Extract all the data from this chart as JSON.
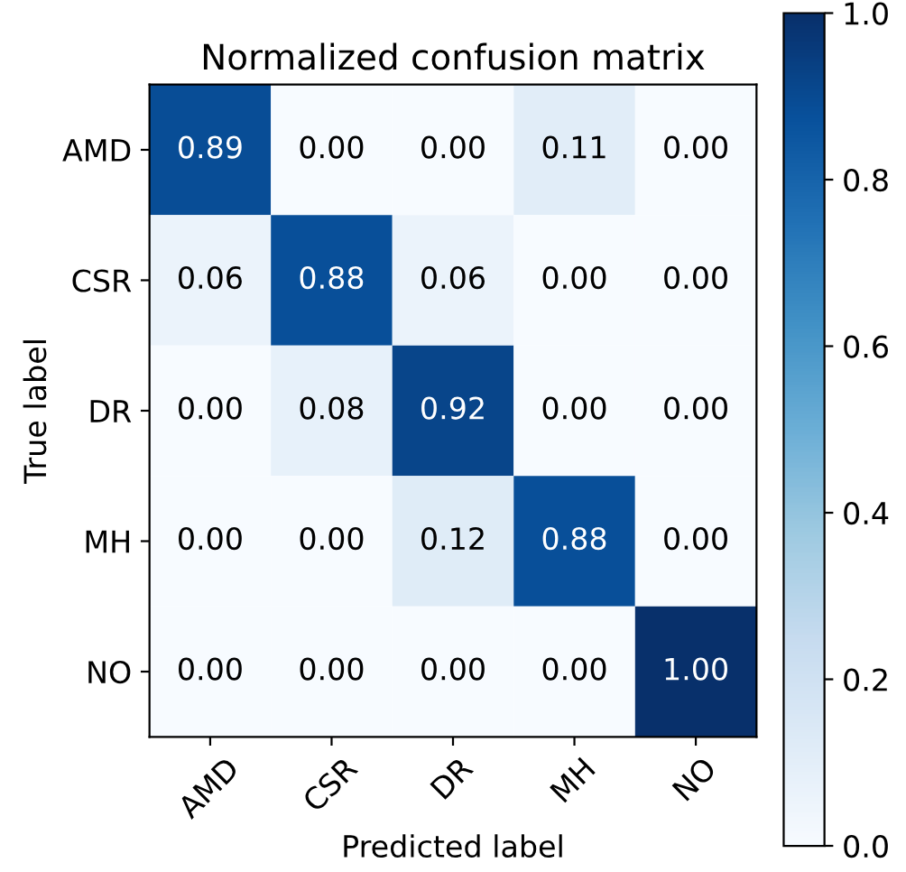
{
  "chart_data": {
    "type": "heatmap",
    "title": "Normalized confusion matrix",
    "xlabel": "Predicted label",
    "ylabel": "True label",
    "categories": [
      "AMD",
      "CSR",
      "DR",
      "MH",
      "NO"
    ],
    "y_categories": [
      "AMD",
      "CSR",
      "DR",
      "MH",
      "NO"
    ],
    "cells": [
      [
        0.89,
        0.0,
        0.0,
        0.11,
        0.0
      ],
      [
        0.06,
        0.88,
        0.06,
        0.0,
        0.0
      ],
      [
        0.0,
        0.08,
        0.92,
        0.0,
        0.0
      ],
      [
        0.0,
        0.0,
        0.12,
        0.88,
        0.0
      ],
      [
        0.0,
        0.0,
        0.0,
        0.0,
        1.0
      ]
    ],
    "cell_labels": [
      [
        "0.89",
        "0.00",
        "0.00",
        "0.11",
        "0.00"
      ],
      [
        "0.06",
        "0.88",
        "0.06",
        "0.00",
        "0.00"
      ],
      [
        "0.00",
        "0.08",
        "0.92",
        "0.00",
        "0.00"
      ],
      [
        "0.00",
        "0.00",
        "0.12",
        "0.88",
        "0.00"
      ],
      [
        "0.00",
        "0.00",
        "0.00",
        "0.00",
        "1.00"
      ]
    ],
    "clim": [
      0,
      1
    ],
    "cticks": [
      {
        "value": 0,
        "label": "0.0"
      },
      {
        "value": 0.2,
        "label": "0.2"
      },
      {
        "value": 0.4,
        "label": "0.4"
      },
      {
        "value": 0.6,
        "label": "0.6"
      },
      {
        "value": 0.8,
        "label": "0.8"
      },
      {
        "value": 1,
        "label": "1.0"
      }
    ]
  }
}
